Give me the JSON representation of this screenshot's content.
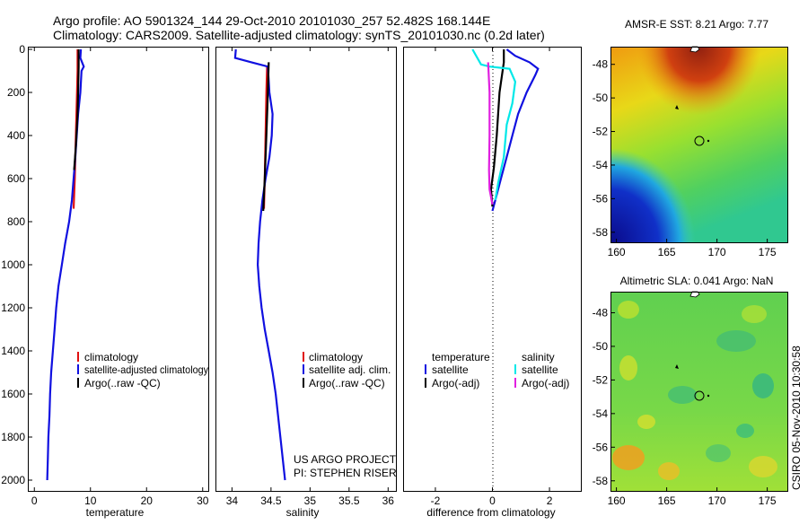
{
  "title_line1": "Argo profile: AO 5901324_144 29-Oct-2010 20101030_257 52.482S 168.144E",
  "title_line2": "Climatology: CARS2009. Satellite-adjusted climatology: synTS_20101030.nc (0.2d later)",
  "credit": "CSIRO 05-Nov-2010 10:30:58",
  "project_line1": "US ARGO PROJECT",
  "project_line2": "PI: STEPHEN RISER",
  "colors": {
    "climatology": "#e01010",
    "satellite": "#1010e0",
    "argo": "#000000",
    "sat_sal": "#00e8e8",
    "argo_sal": "#e020e0"
  },
  "chart_data": [
    {
      "type": "line",
      "xlabel": "temperature",
      "xlim": [
        -1,
        31
      ],
      "ylim": [
        2050,
        0
      ],
      "x_ticks": [
        "0",
        "10",
        "20",
        "30"
      ],
      "y_ticks": [
        "0",
        "200",
        "400",
        "600",
        "800",
        "1000",
        "1200",
        "1400",
        "1600",
        "1800",
        "2000"
      ],
      "legend": [
        "climatology",
        "satellite-adjusted climatology",
        "Argo(..raw -QC)"
      ],
      "series": [
        {
          "name": "climatology",
          "color": "#e01010",
          "points": [
            [
              7.7,
              0
            ],
            [
              7.7,
              100
            ],
            [
              7.6,
              200
            ],
            [
              7.4,
              400
            ],
            [
              7.2,
              600
            ],
            [
              7.0,
              740
            ]
          ]
        },
        {
          "name": "satellite-adjusted climatology",
          "color": "#1010e0",
          "points": [
            [
              8.3,
              0
            ],
            [
              8.2,
              40
            ],
            [
              8.8,
              80
            ],
            [
              8.4,
              100
            ],
            [
              8.2,
              200
            ],
            [
              7.8,
              300
            ],
            [
              7.3,
              500
            ],
            [
              7.0,
              600
            ],
            [
              6.7,
              700
            ],
            [
              6.2,
              800
            ],
            [
              5.5,
              900
            ],
            [
              4.9,
              1000
            ],
            [
              4.3,
              1100
            ],
            [
              3.9,
              1200
            ],
            [
              3.6,
              1300
            ],
            [
              3.3,
              1400
            ],
            [
              3.0,
              1500
            ],
            [
              2.8,
              1600
            ],
            [
              2.7,
              1700
            ],
            [
              2.5,
              1800
            ],
            [
              2.4,
              1900
            ],
            [
              2.3,
              2000
            ]
          ]
        },
        {
          "name": "Argo(..raw -QC)",
          "color": "#000000",
          "points": [
            [
              7.9,
              0
            ],
            [
              7.9,
              80
            ],
            [
              7.8,
              200
            ],
            [
              7.7,
              300
            ],
            [
              7.4,
              450
            ],
            [
              7.1,
              560
            ]
          ]
        }
      ]
    },
    {
      "type": "line",
      "xlabel": "salinity",
      "xlim": [
        33.8,
        36.1
      ],
      "ylim": [
        2050,
        0
      ],
      "x_ticks": [
        "34",
        "34.5",
        "35",
        "35.5",
        "36"
      ],
      "legend": [
        "climatology",
        "satellite adj. clim.",
        "Argo(..raw -QC)"
      ],
      "series": [
        {
          "name": "climatology",
          "color": "#e01010",
          "points": [
            [
              34.45,
              80
            ],
            [
              34.44,
              200
            ],
            [
              34.43,
              400
            ],
            [
              34.42,
              600
            ],
            [
              34.41,
              740
            ]
          ]
        },
        {
          "name": "satellite adj. clim.",
          "color": "#1010e0",
          "points": [
            [
              34.05,
              0
            ],
            [
              34.04,
              40
            ],
            [
              34.25,
              60
            ],
            [
              34.46,
              80
            ],
            [
              34.48,
              200
            ],
            [
              34.52,
              300
            ],
            [
              34.51,
              400
            ],
            [
              34.48,
              500
            ],
            [
              34.43,
              600
            ],
            [
              34.39,
              700
            ],
            [
              34.36,
              800
            ],
            [
              34.34,
              900
            ],
            [
              34.33,
              1000
            ],
            [
              34.35,
              1100
            ],
            [
              34.38,
              1200
            ],
            [
              34.42,
              1300
            ],
            [
              34.47,
              1400
            ],
            [
              34.52,
              1500
            ],
            [
              34.56,
              1600
            ],
            [
              34.59,
              1700
            ],
            [
              34.62,
              1800
            ],
            [
              34.65,
              1900
            ],
            [
              34.68,
              2000
            ]
          ]
        },
        {
          "name": "Argo(..raw -QC)",
          "color": "#000000",
          "points": [
            [
              34.47,
              60
            ],
            [
              34.46,
              200
            ],
            [
              34.44,
              400
            ],
            [
              34.42,
              600
            ],
            [
              34.4,
              750
            ]
          ]
        }
      ]
    },
    {
      "type": "line",
      "xlabel": "difference from climatology",
      "xlim": [
        -3.1,
        3.1
      ],
      "ylim": [
        2050,
        0
      ],
      "x_ticks": [
        "-2",
        "0",
        "2"
      ],
      "legend_headers": [
        "temperature",
        "salinity"
      ],
      "legend": [
        "satellite",
        "Argo(-adj)",
        "satellite",
        "Argo(-adj)"
      ],
      "series": [
        {
          "name": "temperature satellite",
          "color": "#1010e0",
          "points": [
            [
              0.5,
              0
            ],
            [
              0.8,
              30
            ],
            [
              1.3,
              60
            ],
            [
              1.6,
              90
            ],
            [
              1.5,
              120
            ],
            [
              1.2,
              200
            ],
            [
              0.9,
              300
            ],
            [
              0.7,
              400
            ],
            [
              0.5,
              500
            ],
            [
              0.3,
              600
            ],
            [
              0.1,
              700
            ],
            [
              0,
              750
            ]
          ]
        },
        {
          "name": "temperature Argo(-adj)",
          "color": "#000000",
          "points": [
            [
              0.4,
              0
            ],
            [
              0.4,
              60
            ],
            [
              0.25,
              200
            ],
            [
              0.15,
              400
            ],
            [
              0.05,
              550
            ],
            [
              -0.05,
              650
            ],
            [
              0,
              730
            ]
          ]
        },
        {
          "name": "salinity satellite",
          "color": "#00e8e8",
          "points": [
            [
              -0.7,
              0
            ],
            [
              -0.4,
              70
            ],
            [
              -0.1,
              80
            ],
            [
              0.6,
              90
            ],
            [
              0.8,
              150
            ],
            [
              0.7,
              250
            ],
            [
              0.5,
              350
            ],
            [
              0.4,
              500
            ],
            [
              0.2,
              620
            ],
            [
              0.1,
              700
            ]
          ]
        },
        {
          "name": "salinity Argo(-adj)",
          "color": "#e020e0",
          "points": [
            [
              -0.15,
              60
            ],
            [
              -0.1,
              200
            ],
            [
              -0.1,
              400
            ],
            [
              -0.12,
              560
            ],
            [
              -0.1,
              650
            ],
            [
              0,
              720
            ]
          ]
        }
      ]
    }
  ],
  "maps": [
    {
      "title": "AMSR-E SST: 8.21 Argo: 7.77",
      "y_ticks": [
        "-48",
        "-50",
        "-52",
        "-54",
        "-56",
        "-58"
      ],
      "x_ticks": [
        "160",
        "165",
        "170",
        "175"
      ]
    },
    {
      "title": "Altimetric SLA: 0.041 Argo: NaN",
      "y_ticks": [
        "-48",
        "-50",
        "-52",
        "-54",
        "-56",
        "-58"
      ],
      "x_ticks": [
        "160",
        "165",
        "170",
        "175"
      ]
    }
  ]
}
